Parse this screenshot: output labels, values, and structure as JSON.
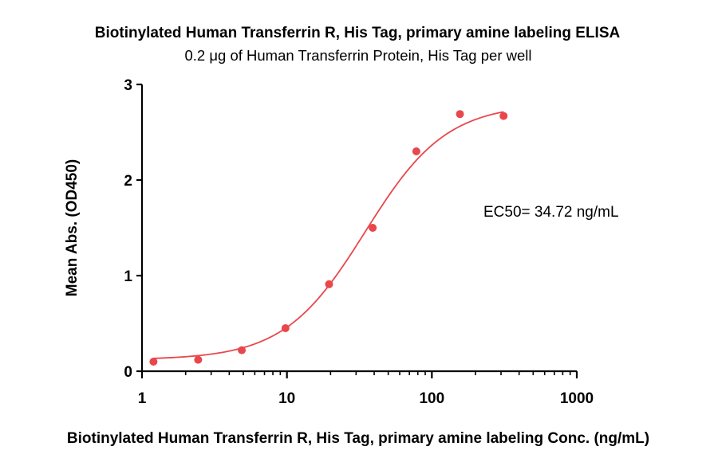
{
  "chart_data": {
    "type": "scatter",
    "title": "Biotinylated Human Transferrin R, His Tag, primary amine labeling ELISA",
    "subtitle": "0.2 μg of Human Transferrin Protein, His Tag per well",
    "xlabel": "Biotinylated Human Transferrin R, His Tag, primary amine labeling Conc. (ng/mL)",
    "ylabel": "Mean Abs. (OD450)",
    "x_scale": "log10",
    "xlim": [
      1,
      1000
    ],
    "ylim": [
      0,
      3
    ],
    "x_ticks": [
      1,
      10,
      100,
      1000
    ],
    "x_tick_labels": [
      "1",
      "10",
      "100",
      "1000"
    ],
    "y_ticks": [
      0,
      1,
      2,
      3
    ],
    "y_tick_labels": [
      "0",
      "1",
      "2",
      "3"
    ],
    "grid": false,
    "color": "#e8474c",
    "series": [
      {
        "x": [
          1.2,
          2.44,
          4.88,
          9.77,
          19.53,
          39.06,
          78.13,
          156.25,
          312.5
        ],
        "y": [
          0.1,
          0.12,
          0.22,
          0.45,
          0.91,
          1.5,
          2.3,
          2.69,
          2.67
        ]
      }
    ],
    "fit_curve": {
      "model": "4PL",
      "bottom": 0.12,
      "top": 2.8,
      "ec50": 34.72,
      "hill": 1.55,
      "x_range": [
        1.2,
        312.5
      ]
    },
    "annotation": "EC50= 34.72 ng/mL"
  }
}
